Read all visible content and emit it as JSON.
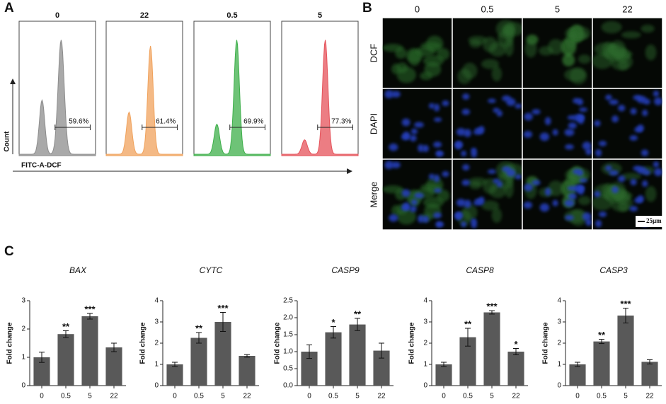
{
  "panel_labels": {
    "a": "A",
    "b": "B",
    "c": "C"
  },
  "flow": {
    "y_label": "Count",
    "x_label": "FITC-A-DCF",
    "plots": [
      {
        "title": "0",
        "gate": "59.6%",
        "color": "#8c8c8c"
      },
      {
        "title": "22",
        "gate": "61.4%",
        "color": "#f0a25c"
      },
      {
        "title": "0.5",
        "gate": "69.9%",
        "color": "#3daf4a"
      },
      {
        "title": "5",
        "gate": "77.3%",
        "color": "#e5525a"
      }
    ]
  },
  "microscopy": {
    "columns": [
      "0",
      "0.5",
      "5",
      "22"
    ],
    "rows": [
      "DCF",
      "DAPI",
      "Merge"
    ],
    "scale_bar": "25μm"
  },
  "chart_data": [
    {
      "type": "bar",
      "title": "BAX",
      "y_label": "Fold change",
      "color": "#595959",
      "categories": [
        "0",
        "0.5",
        "5",
        "22"
      ],
      "values": [
        1.0,
        1.82,
        2.45,
        1.35
      ],
      "errors": [
        0.18,
        0.12,
        0.1,
        0.15
      ],
      "significance": [
        null,
        "**",
        "***",
        null
      ],
      "ylim": [
        0,
        3
      ],
      "yticks": [
        0,
        1,
        2,
        3
      ]
    },
    {
      "type": "bar",
      "title": "CYTC",
      "y_label": "Fold change",
      "color": "#595959",
      "categories": [
        "0",
        "0.5",
        "5",
        "22"
      ],
      "values": [
        1.0,
        2.25,
        3.0,
        1.4
      ],
      "errors": [
        0.1,
        0.25,
        0.45,
        0.06
      ],
      "significance": [
        null,
        "**",
        "***",
        null
      ],
      "ylim": [
        0,
        4
      ],
      "yticks": [
        0,
        1,
        2,
        3,
        4
      ]
    },
    {
      "type": "bar",
      "title": "CASP9",
      "y_label": "Fold change",
      "color": "#595959",
      "categories": [
        "0",
        "0.5",
        "5",
        "22"
      ],
      "values": [
        1.0,
        1.57,
        1.8,
        1.03
      ],
      "errors": [
        0.2,
        0.17,
        0.18,
        0.22
      ],
      "significance": [
        null,
        "*",
        "**",
        null
      ],
      "ylim": [
        0,
        2.5
      ],
      "yticks": [
        {
          "value": 0,
          "label": "0.0"
        },
        0.5,
        {
          "value": 1,
          "label": "1.0"
        },
        1.5,
        {
          "value": 2,
          "label": "2.0"
        },
        2.5
      ]
    },
    {
      "type": "bar",
      "title": "CASP8",
      "y_label": "Fold change",
      "color": "#595959",
      "categories": [
        "0",
        "0.5",
        "5",
        "22"
      ],
      "values": [
        1.0,
        2.28,
        3.45,
        1.6
      ],
      "errors": [
        0.1,
        0.42,
        0.08,
        0.15
      ],
      "significance": [
        null,
        "**",
        "***",
        "*"
      ],
      "ylim": [
        0,
        4
      ],
      "yticks": [
        0,
        1,
        2,
        3,
        4
      ]
    },
    {
      "type": "bar",
      "title": "CASP3",
      "y_label": "Fold change",
      "color": "#595959",
      "categories": [
        "0",
        "0.5",
        "5",
        "22"
      ],
      "values": [
        1.0,
        2.08,
        3.3,
        1.12
      ],
      "errors": [
        0.1,
        0.1,
        0.35,
        0.1
      ],
      "significance": [
        null,
        "**",
        "***",
        null
      ],
      "ylim": [
        0,
        4
      ],
      "yticks": [
        0,
        1,
        2,
        3,
        4
      ]
    }
  ]
}
